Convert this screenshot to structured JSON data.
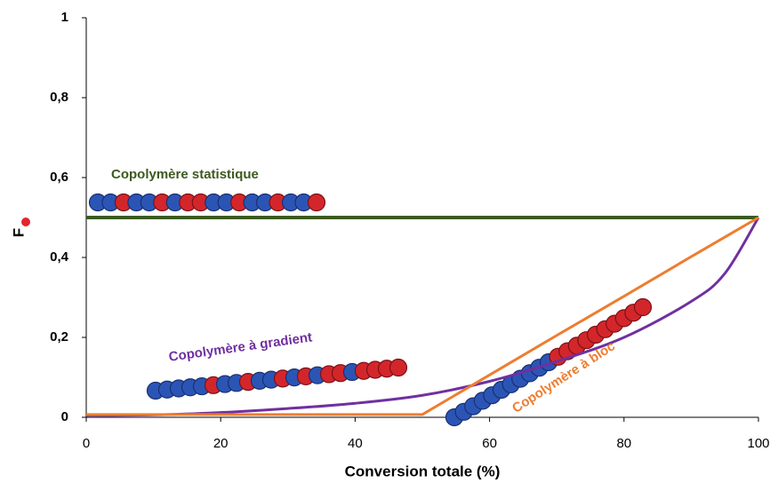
{
  "chart_data": {
    "type": "line",
    "x": [
      0,
      10,
      20,
      30,
      40,
      50,
      60,
      70,
      80,
      90,
      95,
      100
    ],
    "series": [
      {
        "name": "Copolymère statistique",
        "color": "#3b5a1f",
        "values": [
          0.5,
          0.5,
          0.5,
          0.5,
          0.5,
          0.5,
          0.5,
          0.5,
          0.5,
          0.5,
          0.5,
          0.5
        ]
      },
      {
        "name": "Copolymère à gradient",
        "color": "#7030a0",
        "values": [
          0.005,
          0.006,
          0.012,
          0.022,
          0.035,
          0.055,
          0.09,
          0.14,
          0.2,
          0.29,
          0.36,
          0.5
        ]
      },
      {
        "name": "Copolymère à bloc",
        "color": "#ed7d31",
        "values": [
          0.007,
          0.007,
          0.007,
          0.007,
          0.007,
          0.007,
          0.106,
          0.205,
          0.303,
          0.402,
          0.451,
          0.5
        ]
      }
    ],
    "xlabel": "Conversion totale (%)",
    "ylabel": "F",
    "xlim": [
      0,
      100
    ],
    "xticks": [
      0,
      20,
      40,
      60,
      80,
      100
    ],
    "ylim": [
      0,
      1
    ],
    "yticks": [
      0,
      {
        "value": 0.2,
        "label": "0,2"
      },
      {
        "value": 0.4,
        "label": "0,4"
      },
      {
        "value": 0.6,
        "label": "0,6"
      },
      {
        "value": 0.8,
        "label": "0,8"
      },
      1
    ]
  }
}
